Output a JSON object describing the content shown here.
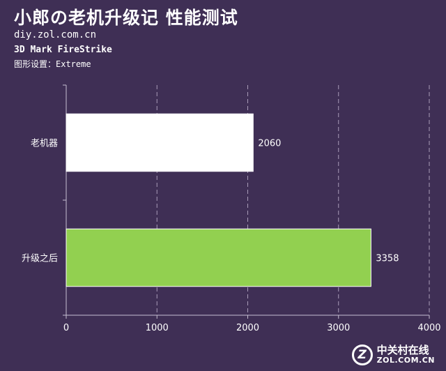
{
  "header": {
    "title": "小郎の老机升级记 性能测试",
    "site": "diy.zol.com.cn",
    "subtitle": "3D Mark FireStrike",
    "setting": "图形设置：Extreme"
  },
  "watermark": {
    "logo_letter": "Z",
    "name_cn": "中关村在线",
    "name_en": "ZOL.COM.CN"
  },
  "colors": {
    "background": "#3f2f55",
    "bar_old": "#ffffff",
    "bar_new": "#92d050",
    "grid": "#a99cb8",
    "axis": "#c7bfd2"
  },
  "chart_data": {
    "type": "bar",
    "orientation": "horizontal",
    "categories": [
      "老机器",
      "升级之后"
    ],
    "values": [
      2060,
      3358
    ],
    "xlim": [
      0,
      4000
    ],
    "xticks": [
      0,
      1000,
      2000,
      3000,
      4000
    ],
    "grid": "vertical-dashed",
    "data_labels": true
  }
}
